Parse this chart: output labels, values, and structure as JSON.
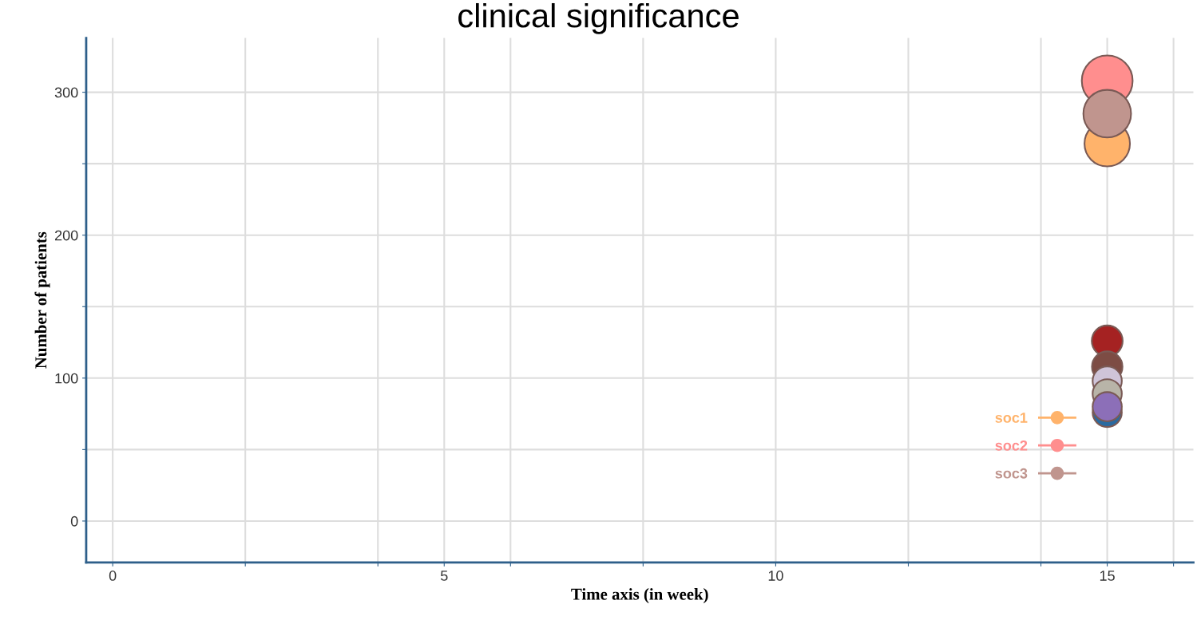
{
  "chart_data": {
    "type": "bubble",
    "title": "clinical significance",
    "xlabel": "Time axis (in week)",
    "ylabel": "Number of patients",
    "xlim": [
      -0.4,
      16.3
    ],
    "ylim": [
      -29,
      338
    ],
    "xticks": [
      0,
      {
        "value": 2,
        "label": null
      },
      {
        "value": 4,
        "label": null
      },
      5,
      {
        "value": 6,
        "label": null
      },
      {
        "value": 8,
        "label": null
      },
      10,
      {
        "value": 12,
        "label": null
      },
      {
        "value": 14,
        "label": null
      },
      15,
      {
        "value": 16,
        "label": null
      }
    ],
    "yticks": [
      0,
      {
        "value": 50,
        "label": null
      },
      100,
      {
        "value": 150,
        "label": null
      },
      200,
      {
        "value": 250,
        "label": null
      },
      300
    ],
    "grid": true,
    "legend": "bottom right",
    "x": [
      15
    ],
    "series": [
      {
        "name": "soc1",
        "color": "#ffb36b",
        "values": [
          264
        ],
        "sizes": [
          0.8
        ]
      },
      {
        "name": "soc2",
        "color": "#ff8e8e",
        "values": [
          308
        ],
        "sizes": [
          1
        ]
      },
      {
        "name": "soc3",
        "color": "#c0958e",
        "values": [
          285
        ],
        "sizes": [
          0.88
        ]
      },
      {
        "color": "#a52222",
        "values": [
          126
        ],
        "sizes": [
          0.37
        ]
      },
      {
        "color": "#7d4c44",
        "values": [
          108
        ],
        "sizes": [
          0.36
        ]
      },
      {
        "color": "#2a6aa0",
        "values": [
          76
        ],
        "sizes": [
          0.33
        ]
      },
      {
        "color": "#cfc4d8",
        "values": [
          98
        ],
        "sizes": [
          0.33
        ]
      },
      {
        "color": "#b8b4a8",
        "values": [
          89
        ],
        "sizes": [
          0.33
        ]
      },
      {
        "color": "#8c6fb8",
        "values": [
          80
        ],
        "sizes": [
          0.33
        ]
      }
    ]
  }
}
